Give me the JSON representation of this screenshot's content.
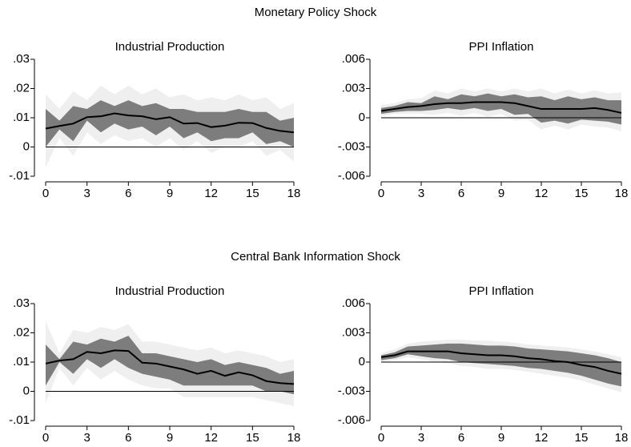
{
  "chart_data": [
    {
      "type": "line",
      "suptitle": "Monetary Policy Shock",
      "title": "Industrial Production",
      "x": [
        0,
        1,
        2,
        3,
        4,
        5,
        6,
        7,
        8,
        9,
        10,
        11,
        12,
        13,
        14,
        15,
        16,
        17,
        18
      ],
      "xlim": [
        0,
        18
      ],
      "xticks": [
        0,
        3,
        6,
        9,
        12,
        15,
        18
      ],
      "ylim": [
        -0.01,
        0.03
      ],
      "yticks": [
        {
          "value": 0.03,
          "label": ".03"
        },
        {
          "value": 0.02,
          "label": ".02"
        },
        {
          "value": 0.01,
          "label": ".01"
        },
        0,
        {
          "value": -0.01,
          "label": "-.01"
        }
      ],
      "zero_line": true,
      "bands": [
        {
          "color": "#efefef",
          "lower": [
            -0.007,
            0.003,
            -0.003,
            0.005,
            0.001,
            0.004,
            0.002,
            0.003,
            0,
            0.003,
            -0.001,
            0.002,
            -0.002,
            0,
            0,
            0.002,
            -0.003,
            -0.001,
            -0.005
          ],
          "upper": [
            0.018,
            0.013,
            0.019,
            0.016,
            0.021,
            0.018,
            0.021,
            0.018,
            0.02,
            0.017,
            0.018,
            0.016,
            0.017,
            0.016,
            0.018,
            0.016,
            0.017,
            0.013,
            0.015
          ]
        },
        {
          "color": "#7d7d7d",
          "lower": [
            0,
            0.006,
            0.002,
            0.009,
            0.005,
            0.008,
            0.006,
            0.007,
            0.004,
            0.007,
            0.003,
            0.005,
            0.002,
            0.003,
            0.003,
            0.005,
            0.001,
            0.002,
            0
          ],
          "upper": [
            0.013,
            0.009,
            0.014,
            0.013,
            0.016,
            0.014,
            0.016,
            0.014,
            0.015,
            0.013,
            0.013,
            0.012,
            0.012,
            0.012,
            0.013,
            0.012,
            0.012,
            0.009,
            0.01
          ]
        }
      ],
      "series": [
        {
          "color": "#000000",
          "values": [
            0.0063,
            0.0072,
            0.008,
            0.0102,
            0.0105,
            0.0115,
            0.0108,
            0.0105,
            0.0095,
            0.0102,
            0.008,
            0.0082,
            0.0068,
            0.0073,
            0.0083,
            0.0082,
            0.0065,
            0.0055,
            0.005
          ]
        }
      ]
    },
    {
      "type": "line",
      "title": "PPI Inflation",
      "x": [
        0,
        1,
        2,
        3,
        4,
        5,
        6,
        7,
        8,
        9,
        10,
        11,
        12,
        13,
        14,
        15,
        16,
        17,
        18
      ],
      "xlim": [
        0,
        18
      ],
      "xticks": [
        0,
        3,
        6,
        9,
        12,
        15,
        18
      ],
      "ylim": [
        -0.006,
        0.006
      ],
      "yticks": [
        {
          "value": 0.006,
          "label": ".006"
        },
        {
          "value": 0.003,
          "label": ".003"
        },
        0,
        {
          "value": -0.003,
          "label": "-.003"
        },
        {
          "value": -0.006,
          "label": "-.006"
        }
      ],
      "zero_line": true,
      "bands": [
        {
          "color": "#efefef",
          "lower": [
            0.0002,
            0.0004,
            0.0004,
            0.0004,
            0.0003,
            0.0005,
            0.0002,
            0.0005,
            0.0001,
            0.0004,
            -0.0003,
            -0.0002,
            -0.0012,
            -0.0008,
            -0.0012,
            -0.0007,
            -0.0009,
            -0.001,
            -0.0014
          ],
          "upper": [
            0.0013,
            0.0015,
            0.0019,
            0.002,
            0.0028,
            0.0025,
            0.003,
            0.0027,
            0.003,
            0.0027,
            0.003,
            0.0027,
            0.003,
            0.0025,
            0.0029,
            0.0025,
            0.0028,
            0.0025,
            0.0026
          ]
        },
        {
          "color": "#7d7d7d",
          "lower": [
            0.0004,
            0.0006,
            0.0007,
            0.0007,
            0.0008,
            0.001,
            0.0008,
            0.001,
            0.0007,
            0.0009,
            0.0003,
            0.0004,
            -0.0005,
            -0.0003,
            -0.0006,
            -0.0002,
            -0.0003,
            -0.0004,
            -0.0007
          ],
          "upper": [
            0.001,
            0.0012,
            0.0016,
            0.0015,
            0.0022,
            0.0019,
            0.0024,
            0.0022,
            0.0025,
            0.0022,
            0.0024,
            0.0021,
            0.0022,
            0.0018,
            0.0022,
            0.0019,
            0.0021,
            0.0018,
            0.0018
          ]
        }
      ],
      "series": [
        {
          "color": "#000000",
          "values": [
            0.0007,
            0.0009,
            0.0011,
            0.0012,
            0.0014,
            0.0015,
            0.0015,
            0.0016,
            0.0016,
            0.0016,
            0.0015,
            0.0012,
            0.0009,
            0.0009,
            0.0009,
            0.0009,
            0.001,
            0.0008,
            0.0005
          ]
        }
      ]
    },
    {
      "type": "line",
      "suptitle": "Central Bank Information Shock",
      "title": "Industrial Production",
      "x": [
        0,
        1,
        2,
        3,
        4,
        5,
        6,
        7,
        8,
        9,
        10,
        11,
        12,
        13,
        14,
        15,
        16,
        17,
        18
      ],
      "xlim": [
        0,
        18
      ],
      "xticks": [
        0,
        3,
        6,
        9,
        12,
        15,
        18
      ],
      "ylim": [
        -0.01,
        0.03
      ],
      "yticks": [
        {
          "value": 0.03,
          "label": ".03"
        },
        {
          "value": 0.02,
          "label": ".02"
        },
        {
          "value": 0.01,
          "label": ".01"
        },
        0,
        {
          "value": -0.01,
          "label": "-.01"
        }
      ],
      "zero_line": true,
      "bands": [
        {
          "color": "#efefef",
          "lower": [
            -0.004,
            0.008,
            0.002,
            0.008,
            0.004,
            0.007,
            0.004,
            0.002,
            0.001,
            0.001,
            -0.002,
            -0.002,
            -0.002,
            -0.002,
            -0.002,
            -0.002,
            -0.003,
            -0.004,
            -0.005
          ],
          "upper": [
            0.024,
            0.013,
            0.021,
            0.02,
            0.022,
            0.021,
            0.023,
            0.017,
            0.017,
            0.016,
            0.015,
            0.014,
            0.015,
            0.013,
            0.014,
            0.013,
            0.012,
            0.01,
            0.011
          ]
        },
        {
          "color": "#7d7d7d",
          "lower": [
            0.002,
            0.01,
            0.006,
            0.011,
            0.008,
            0.011,
            0.008,
            0.006,
            0.005,
            0.004,
            0.002,
            0.002,
            0.002,
            0.002,
            0.002,
            0.002,
            0,
            0,
            -0.001
          ],
          "upper": [
            0.016,
            0.011,
            0.017,
            0.016,
            0.018,
            0.017,
            0.019,
            0.013,
            0.013,
            0.012,
            0.011,
            0.01,
            0.011,
            0.009,
            0.01,
            0.009,
            0.008,
            0.006,
            0.007
          ]
        }
      ],
      "series": [
        {
          "color": "#000000",
          "values": [
            0.0095,
            0.0105,
            0.011,
            0.0135,
            0.013,
            0.014,
            0.0138,
            0.0098,
            0.0095,
            0.0085,
            0.0075,
            0.006,
            0.007,
            0.0053,
            0.0065,
            0.0055,
            0.0035,
            0.0028,
            0.0025
          ]
        }
      ]
    },
    {
      "type": "line",
      "title": "PPI Inflation",
      "x": [
        0,
        1,
        2,
        3,
        4,
        5,
        6,
        7,
        8,
        9,
        10,
        11,
        12,
        13,
        14,
        15,
        16,
        17,
        18
      ],
      "xlim": [
        0,
        18
      ],
      "xticks": [
        0,
        3,
        6,
        9,
        12,
        15,
        18
      ],
      "ylim": [
        -0.006,
        0.006
      ],
      "yticks": [
        {
          "value": 0.006,
          "label": ".006"
        },
        {
          "value": 0.003,
          "label": ".003"
        },
        0,
        {
          "value": -0.003,
          "label": "-.003"
        },
        {
          "value": -0.006,
          "label": "-.006"
        }
      ],
      "zero_line": true,
      "bands": [
        {
          "color": "#efefef",
          "lower": [
            0,
            0.0002,
            0.0005,
            0.0003,
            0,
            -0.0001,
            -0.0004,
            -0.0005,
            -0.0007,
            -0.0007,
            -0.0008,
            -0.001,
            -0.0012,
            -0.0014,
            -0.0016,
            -0.0019,
            -0.0023,
            -0.0027,
            -0.0031
          ],
          "upper": [
            0.0009,
            0.0013,
            0.0019,
            0.0021,
            0.0022,
            0.0023,
            0.0023,
            0.0022,
            0.0022,
            0.0021,
            0.002,
            0.0018,
            0.0017,
            0.0016,
            0.0015,
            0.0013,
            0.0011,
            0.0008,
            0.0005
          ]
        },
        {
          "color": "#7d7d7d",
          "lower": [
            0.0002,
            0.0004,
            0.0008,
            0.0006,
            0.0004,
            0.0003,
            0,
            -0.0001,
            -0.0002,
            -0.0003,
            -0.0004,
            -0.0006,
            -0.0007,
            -0.0009,
            -0.0011,
            -0.0014,
            -0.0018,
            -0.0022,
            -0.0025
          ],
          "upper": [
            0.0007,
            0.001,
            0.0016,
            0.0017,
            0.0018,
            0.0019,
            0.0019,
            0.0018,
            0.0017,
            0.0017,
            0.0016,
            0.0014,
            0.0013,
            0.0012,
            0.0011,
            0.0009,
            0.0007,
            0.0004,
            0
          ]
        }
      ],
      "series": [
        {
          "color": "#000000",
          "values": [
            0.0005,
            0.0007,
            0.0011,
            0.0011,
            0.0011,
            0.0011,
            0.0009,
            0.0008,
            0.0007,
            0.0007,
            0.0006,
            0.0004,
            0.0003,
            0.0001,
            0,
            -0.0003,
            -0.0005,
            -0.0009,
            -0.0012
          ]
        }
      ]
    }
  ]
}
